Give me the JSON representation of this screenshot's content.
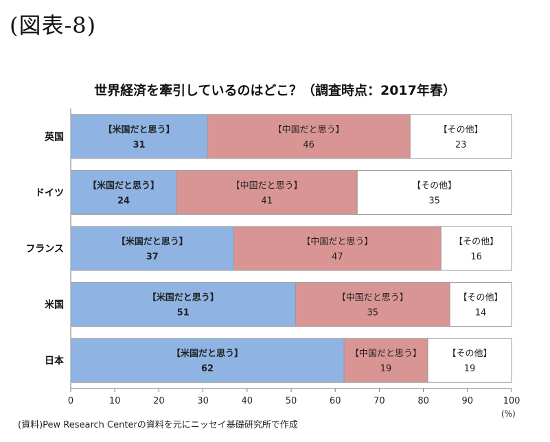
{
  "figure_label": "(図表-8)",
  "source": "(資料)Pew Research Centerの資料を元にニッセイ基礎研究所で作成",
  "unit": "(%)",
  "colors": {
    "us": "#8fb4e3",
    "china": "#d99594",
    "other": "#ffffff",
    "border": "#9a9a9a"
  },
  "chart_data": {
    "type": "bar",
    "orientation": "horizontal",
    "stacked": true,
    "title": "世界経済を牽引しているのはどこ？（調査時点：2017年春）",
    "categories": [
      "英国",
      "ドイツ",
      "フランス",
      "米国",
      "日本"
    ],
    "series": [
      {
        "name": "【米国だと思う】",
        "values": [
          31,
          24,
          37,
          51,
          62
        ]
      },
      {
        "name": "【中国だと思う】",
        "values": [
          46,
          41,
          47,
          35,
          19
        ]
      },
      {
        "name": "【その他】",
        "values": [
          23,
          35,
          16,
          14,
          19
        ]
      }
    ],
    "xlim": [
      0,
      100
    ],
    "xticks": [
      0,
      10,
      20,
      30,
      40,
      50,
      60,
      70,
      80,
      90,
      100
    ],
    "xunit": "(%)",
    "legend": "inline-segment-labels"
  }
}
